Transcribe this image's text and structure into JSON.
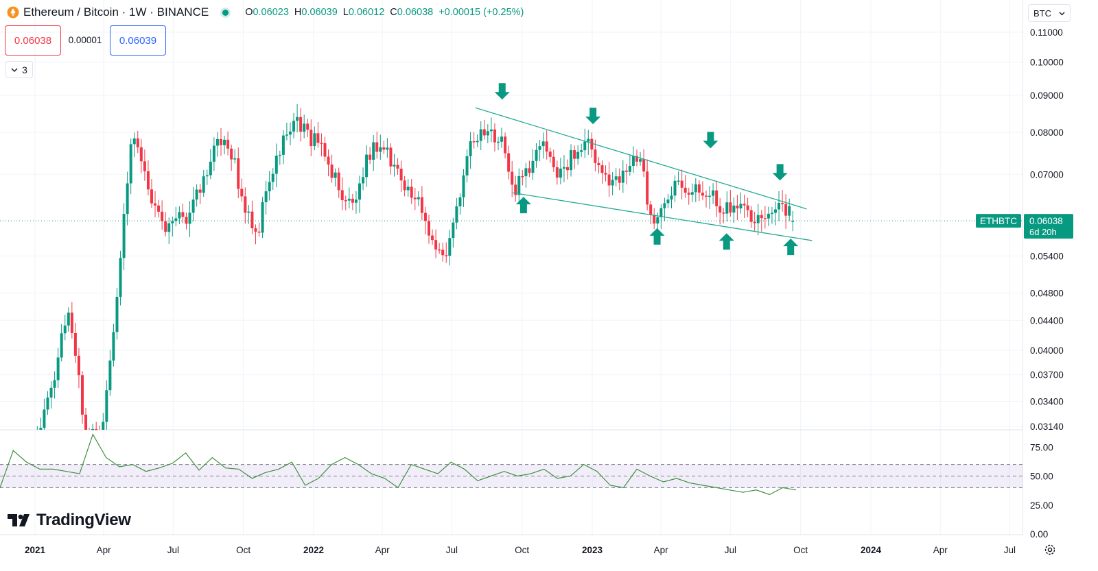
{
  "header": {
    "title": "Ethereum / Bitcoin · 1W · BINANCE",
    "ohlc": [
      {
        "k": "O",
        "v": "0.06023"
      },
      {
        "k": "H",
        "v": "0.06039"
      },
      {
        "k": "L",
        "v": "0.06012"
      },
      {
        "k": "C",
        "v": "0.06038"
      }
    ],
    "change": "+0.00015 (+0.25%)",
    "market_status_color": "#089981"
  },
  "trade": {
    "sell": "0.06038",
    "spread": "0.00001",
    "buy": "0.06039"
  },
  "indicators_toggle": {
    "label": "3",
    "icon": "chevron-down-icon"
  },
  "currency_select": {
    "value": "BTC",
    "icon": "chevron-down-icon"
  },
  "branding": {
    "name": "TradingView",
    "icon": "tradingview-logo-icon"
  },
  "settings": {
    "icon": "gear-icon"
  },
  "colors": {
    "up": "#089981",
    "down": "#f23645",
    "trendline": "#22ab94",
    "rsi": "#3d8f3d"
  },
  "chart_data": [
    {
      "type": "candlestick",
      "symbol": "ETHBTC",
      "interval": "1W",
      "scale": "log",
      "y_ticks": [
        "0.11000",
        "0.10000",
        "0.09000",
        "0.08000",
        "0.07000",
        "0.06038",
        "0.05400",
        "0.04800",
        "0.04400",
        "0.04000",
        "0.03700",
        "0.03400",
        "0.03140"
      ],
      "x_ticks": [
        "2021",
        "Apr",
        "Jul",
        "Oct",
        "2022",
        "Apr",
        "Jul",
        "Oct",
        "2023",
        "Apr",
        "Jul",
        "Oct",
        "2024",
        "Apr",
        "Jul"
      ],
      "last_price": {
        "symbol": "ETHBTC",
        "value": "0.06038",
        "countdown": "6d 20h"
      },
      "close_series": [
        {
          "x": "2021-01-04",
          "y": 0.031
        },
        {
          "x": "2021-02-15",
          "y": 0.044
        },
        {
          "x": "2021-03-08",
          "y": 0.0315
        },
        {
          "x": "2021-03-29",
          "y": 0.0312
        },
        {
          "x": "2021-04-12",
          "y": 0.04
        },
        {
          "x": "2021-05-03",
          "y": 0.068
        },
        {
          "x": "2021-05-10",
          "y": 0.082
        },
        {
          "x": "2021-05-31",
          "y": 0.068
        },
        {
          "x": "2021-06-21",
          "y": 0.057
        },
        {
          "x": "2021-07-12",
          "y": 0.06
        },
        {
          "x": "2021-08-09",
          "y": 0.07
        },
        {
          "x": "2021-09-06",
          "y": 0.0775
        },
        {
          "x": "2021-10-04",
          "y": 0.064
        },
        {
          "x": "2021-10-18",
          "y": 0.058
        },
        {
          "x": "2021-11-22",
          "y": 0.077
        },
        {
          "x": "2021-12-06",
          "y": 0.086
        },
        {
          "x": "2021-12-27",
          "y": 0.0805
        },
        {
          "x": "2022-01-24",
          "y": 0.069
        },
        {
          "x": "2022-02-21",
          "y": 0.065
        },
        {
          "x": "2022-03-21",
          "y": 0.075
        },
        {
          "x": "2022-04-18",
          "y": 0.0735
        },
        {
          "x": "2022-05-09",
          "y": 0.067
        },
        {
          "x": "2022-06-13",
          "y": 0.053
        },
        {
          "x": "2022-06-27",
          "y": 0.057
        },
        {
          "x": "2022-07-18",
          "y": 0.072
        },
        {
          "x": "2022-08-08",
          "y": 0.079
        },
        {
          "x": "2022-09-05",
          "y": 0.08
        },
        {
          "x": "2022-09-19",
          "y": 0.068
        },
        {
          "x": "2022-10-10",
          "y": 0.07
        },
        {
          "x": "2022-10-31",
          "y": 0.077
        },
        {
          "x": "2022-11-14",
          "y": 0.072
        },
        {
          "x": "2022-12-05",
          "y": 0.073
        },
        {
          "x": "2022-12-26",
          "y": 0.0755
        },
        {
          "x": "2023-01-16",
          "y": 0.071
        },
        {
          "x": "2023-02-13",
          "y": 0.07
        },
        {
          "x": "2023-03-06",
          "y": 0.072
        },
        {
          "x": "2023-03-20",
          "y": 0.0615
        },
        {
          "x": "2023-04-03",
          "y": 0.064
        },
        {
          "x": "2023-04-17",
          "y": 0.069
        },
        {
          "x": "2023-05-08",
          "y": 0.065
        },
        {
          "x": "2023-06-05",
          "y": 0.0685
        },
        {
          "x": "2023-06-19",
          "y": 0.062
        },
        {
          "x": "2023-07-03",
          "y": 0.0615
        },
        {
          "x": "2023-07-31",
          "y": 0.0625
        },
        {
          "x": "2023-08-21",
          "y": 0.0635
        },
        {
          "x": "2023-09-11",
          "y": 0.061
        },
        {
          "x": "2023-09-25",
          "y": 0.0604
        }
      ],
      "trendlines": [
        {
          "x1": "2022-08-01",
          "y1": 0.0865,
          "x2": "2023-10-09",
          "y2": 0.0627
        },
        {
          "x1": "2022-09-19",
          "y1": 0.066,
          "x2": "2023-10-16",
          "y2": 0.0567
        }
      ],
      "markers": [
        {
          "x": "2022-09-05",
          "direction": "down"
        },
        {
          "x": "2022-10-03",
          "direction": "up"
        },
        {
          "x": "2023-01-02",
          "direction": "down"
        },
        {
          "x": "2023-03-27",
          "direction": "up"
        },
        {
          "x": "2023-06-05",
          "direction": "down"
        },
        {
          "x": "2023-06-26",
          "direction": "up"
        },
        {
          "x": "2023-09-04",
          "direction": "down"
        },
        {
          "x": "2023-09-18",
          "direction": "up"
        }
      ]
    },
    {
      "type": "line",
      "indicator": "RSI",
      "y_ticks": [
        "75.00",
        "50.00",
        "25.00",
        "0.00"
      ],
      "ylim": [
        0,
        100
      ],
      "band": [
        40,
        60
      ],
      "midline": 50,
      "series": [
        {
          "values": [
            40,
            72,
            62,
            56,
            56,
            54,
            52,
            86,
            66,
            58,
            60,
            54,
            57,
            61,
            70,
            55,
            66,
            57,
            56,
            48,
            53,
            56,
            62,
            42,
            48,
            60,
            66,
            60,
            52,
            48,
            40,
            60,
            56,
            52,
            62,
            56,
            46,
            50,
            54,
            50,
            52,
            56,
            48,
            50,
            60,
            54,
            42,
            40,
            56,
            50,
            45,
            48,
            44,
            42,
            40,
            38,
            36,
            38,
            34,
            40,
            38
          ]
        }
      ]
    }
  ]
}
